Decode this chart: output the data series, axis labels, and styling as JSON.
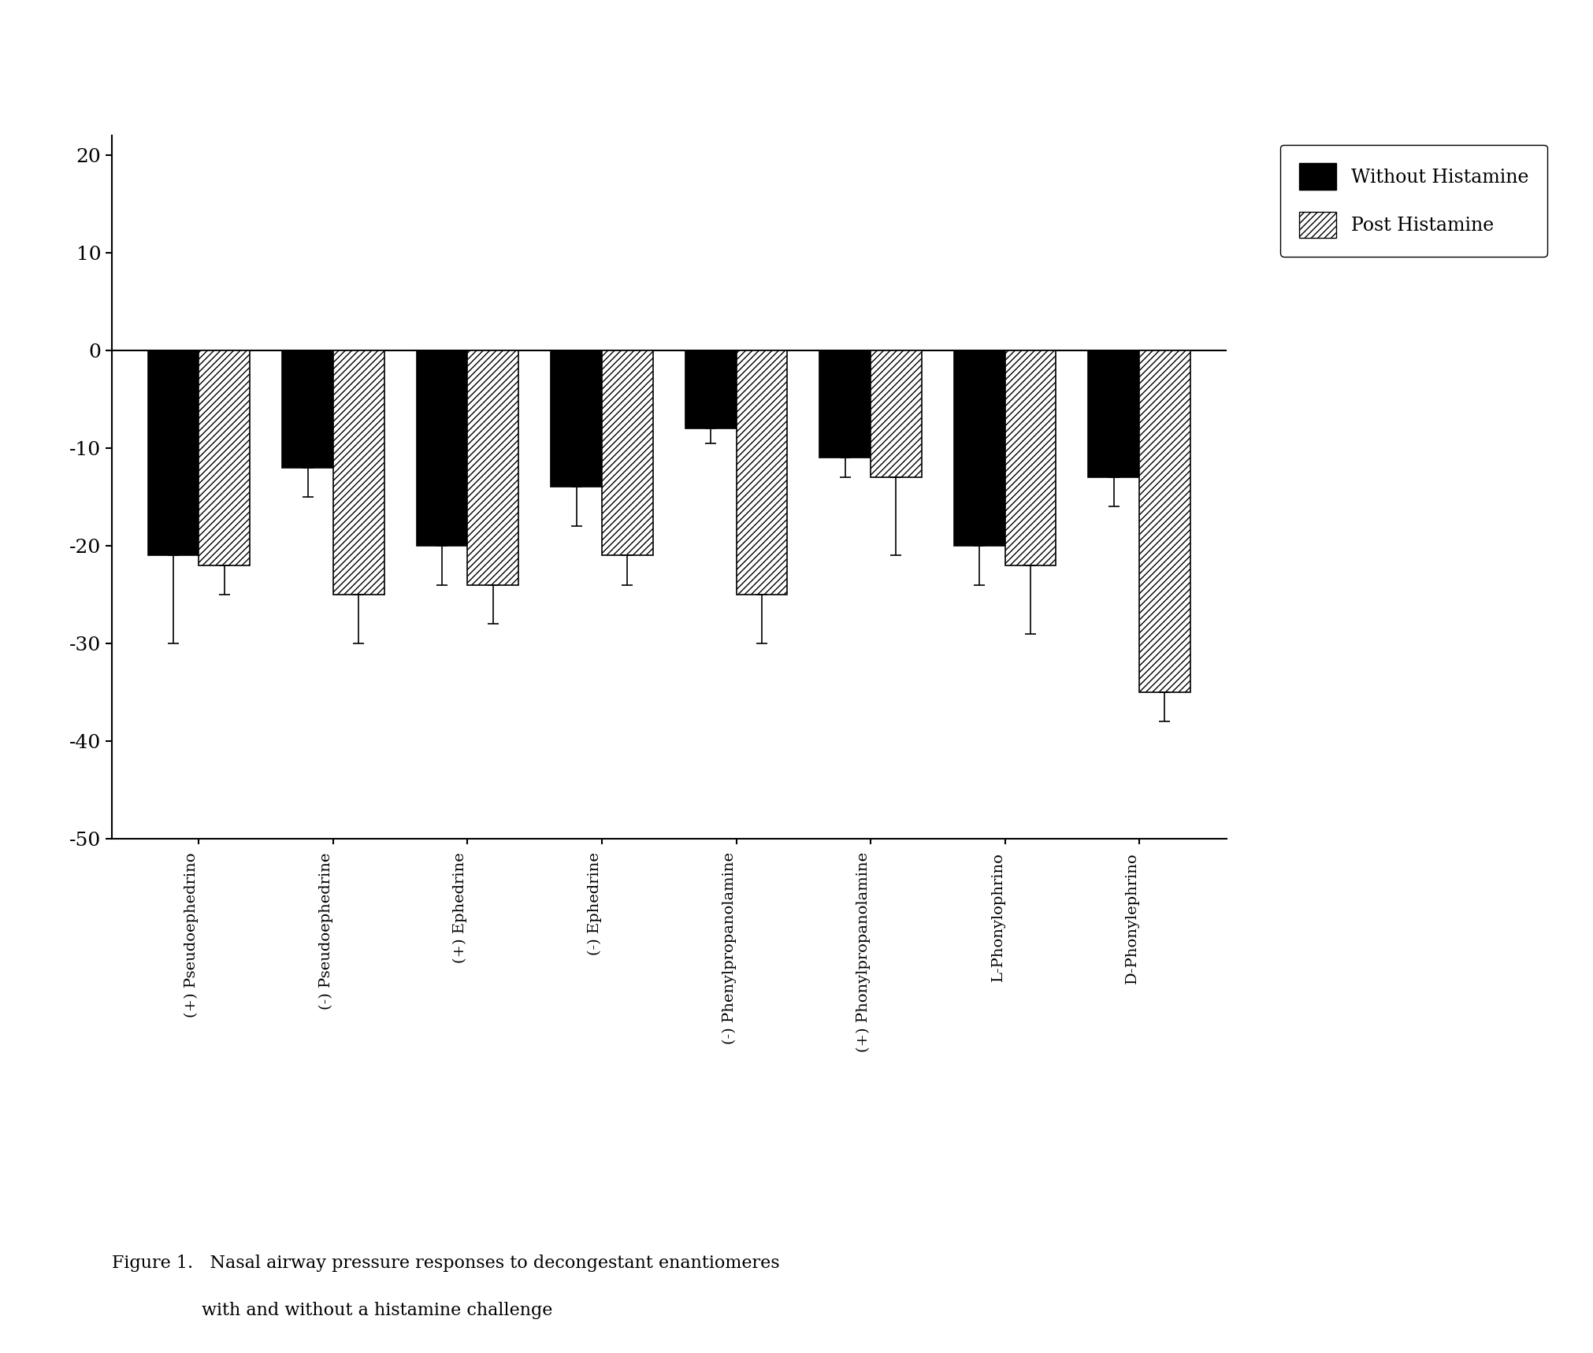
{
  "categories": [
    "(+) Pseudoephedrino",
    "(-) Pseudoephedrine",
    "(+) Ephedrine",
    "(-) Ephedrine",
    "(-) Phenylpropanolamine",
    "(+) Phonylpropanolamine",
    "L-Phonylophrino",
    "D-Phonylephrino"
  ],
  "without_histamine": [
    -21,
    -12,
    -20,
    -14,
    -8,
    -11,
    -20,
    -13
  ],
  "without_histamine_err": [
    9,
    3,
    4,
    4,
    1.5,
    2,
    4,
    3
  ],
  "post_histamine": [
    -22,
    -25,
    -24,
    -21,
    -25,
    -13,
    -22,
    -35
  ],
  "post_histamine_err": [
    3,
    5,
    4,
    3,
    5,
    8,
    7,
    3
  ],
  "ylim": [
    -50,
    22
  ],
  "yticks": [
    -50,
    -40,
    -30,
    -20,
    -10,
    0,
    10,
    20
  ],
  "ytick_labels": [
    "-50",
    "-40",
    "-30",
    "-20",
    "-10",
    "0",
    "10",
    "20"
  ],
  "bar_width": 0.38,
  "solid_color": "#000000",
  "background_color": "#ffffff",
  "caption_line1": "Figure 1.   Nasal airway pressure responses to decongestant enantiomeres",
  "caption_line2": "                with and without a histamine challenge",
  "legend_without": "Without Histamine",
  "legend_post": "Post Histamine"
}
